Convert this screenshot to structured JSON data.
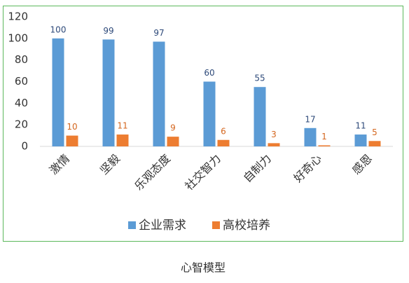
{
  "chart_data": {
    "type": "bar",
    "title": "心智模型",
    "categories": [
      "激情",
      "坚毅",
      "乐观态度",
      "社交智力",
      "自制力",
      "好奇心",
      "感恩"
    ],
    "series": [
      {
        "name": "企业需求",
        "color": "#5b9bd5",
        "label_color": "#2e4a7a",
        "values": [
          100,
          99,
          97,
          60,
          55,
          17,
          11
        ]
      },
      {
        "name": "高校培养",
        "color": "#ed7d31",
        "label_color": "#d4661e",
        "values": [
          10,
          11,
          9,
          6,
          3,
          1,
          5
        ]
      }
    ],
    "ylim": [
      0,
      120
    ],
    "yticks": [
      0,
      20,
      40,
      60,
      80,
      100,
      120
    ],
    "grid": false,
    "legend": "bottom",
    "frame_color": "#5cb85c"
  }
}
